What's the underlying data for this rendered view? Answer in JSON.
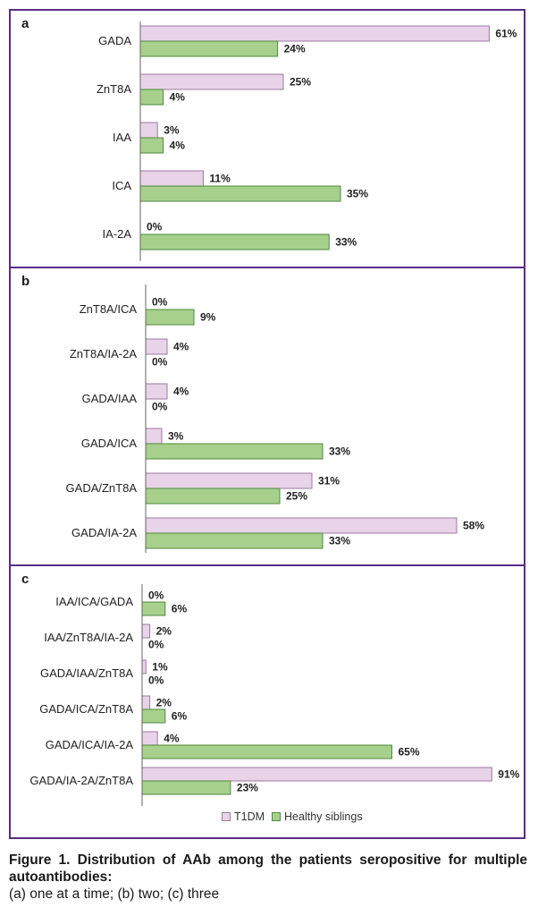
{
  "colors": {
    "t1dm": "#e8d3e8",
    "t1dm_stroke": "#9b7aa0",
    "siblings": "#a8d08d",
    "siblings_stroke": "#4d8a3a",
    "frame": "#5b2d86"
  },
  "legend": {
    "t1dm": "T1DM",
    "siblings": "Healthy siblings"
  },
  "caption": {
    "title": "Figure 1. Distribution of AAb among the patients seropositive for multiple autoantibodies:",
    "subtitle": "(a) one at a time; (b) two; (c) three"
  },
  "chart_data": [
    {
      "type": "bar",
      "panel": "a",
      "orientation": "horizontal",
      "categories": [
        "GADA",
        "ZnT8A",
        "IAA",
        "ICA",
        "IA-2A"
      ],
      "series": [
        {
          "name": "T1DM",
          "values": [
            61,
            25,
            3,
            11,
            0
          ]
        },
        {
          "name": "Healthy siblings",
          "values": [
            24,
            4,
            4,
            35,
            33
          ]
        }
      ],
      "value_suffix": "%"
    },
    {
      "type": "bar",
      "panel": "b",
      "orientation": "horizontal",
      "categories": [
        "ZnT8A/ICA",
        "ZnT8A/IA-2A",
        "GADA/IAA",
        "GADA/ICA",
        "GADA/ZnT8A",
        "GADA/IA-2A"
      ],
      "series": [
        {
          "name": "T1DM",
          "values": [
            0,
            4,
            4,
            3,
            31,
            58
          ]
        },
        {
          "name": "Healthy siblings",
          "values": [
            9,
            0,
            0,
            33,
            25,
            33
          ]
        }
      ],
      "value_suffix": "%"
    },
    {
      "type": "bar",
      "panel": "c",
      "orientation": "horizontal",
      "categories": [
        "IAA/ICA/GADA",
        "IAA/ZnT8A/IA-2A",
        "GADA/IAA/ZnT8A",
        "GADA/ICA/ZnT8A",
        "GADA/ICA/IA-2A",
        "GADA/IA-2A/ZnT8A"
      ],
      "series": [
        {
          "name": "T1DM",
          "values": [
            0,
            2,
            1,
            2,
            4,
            91
          ]
        },
        {
          "name": "Healthy siblings",
          "values": [
            6,
            0,
            0,
            6,
            65,
            23
          ]
        }
      ],
      "value_suffix": "%",
      "legend_position": "bottom"
    }
  ]
}
